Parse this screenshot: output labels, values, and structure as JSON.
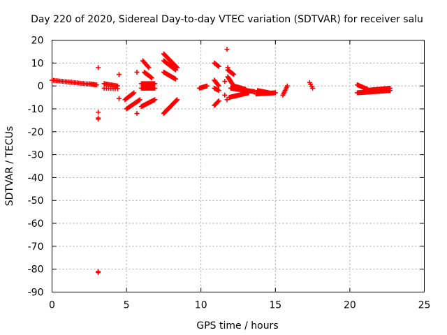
{
  "chart_data": {
    "type": "scatter",
    "title": "Day 220 of 2020, Sidereal Day-to-day VTEC variation (SDTVAR) for receiver salu",
    "xlabel": "GPS time / hours",
    "ylabel": "SDTVAR / TECUs",
    "xlim": [
      0,
      25
    ],
    "ylim": [
      -90,
      20
    ],
    "xticks": [
      "0",
      "5",
      "10",
      "15",
      "20",
      "25"
    ],
    "yticks": [
      "20",
      "10",
      "0",
      "-10",
      "-20",
      "-30",
      "-40",
      "-50",
      "-60",
      "-70",
      "-80",
      "-90"
    ],
    "grid": true,
    "marker": "+",
    "color": "#ff0000",
    "segments": [
      {
        "x": [
          0.0,
          2.9
        ],
        "y": [
          2.5,
          0.5
        ],
        "step": 0.1
      },
      {
        "x": [
          2.5,
          3.0
        ],
        "y": [
          1.0,
          0.5
        ],
        "step": 0.12
      },
      {
        "x": [
          3.5,
          4.4
        ],
        "y": [
          1.0,
          0.0
        ],
        "step": 0.08
      },
      {
        "x": [
          3.5,
          4.4
        ],
        "y": [
          -1.0,
          -1.2
        ],
        "step": 0.15
      },
      {
        "x": [
          4.9,
          5.5
        ],
        "y": [
          -6.0,
          -3.0
        ],
        "step": 0.06
      },
      {
        "x": [
          5.0,
          5.9
        ],
        "y": [
          -10.0,
          -6.0
        ],
        "step": 0.06
      },
      {
        "x": [
          6.1,
          6.5
        ],
        "y": [
          11.0,
          8.0
        ],
        "step": 0.06
      },
      {
        "x": [
          6.2,
          6.7
        ],
        "y": [
          6.0,
          3.5
        ],
        "step": 0.05
      },
      {
        "x": [
          6.0,
          6.9
        ],
        "y": [
          1.0,
          1.0
        ],
        "step": 0.06
      },
      {
        "x": [
          6.0,
          6.9
        ],
        "y": [
          -1.0,
          -1.0
        ],
        "step": 0.06
      },
      {
        "x": [
          6.0,
          6.9
        ],
        "y": [
          -9.0,
          -6.0
        ],
        "step": 0.05
      },
      {
        "x": [
          7.5,
          8.4
        ],
        "y": [
          14.0,
          8.0
        ],
        "step": 0.04
      },
      {
        "x": [
          7.5,
          8.3
        ],
        "y": [
          11.0,
          7.0
        ],
        "step": 0.05
      },
      {
        "x": [
          7.5,
          8.3
        ],
        "y": [
          6.0,
          3.0
        ],
        "step": 0.05
      },
      {
        "x": [
          7.5,
          8.4
        ],
        "y": [
          -12.0,
          -6.0
        ],
        "step": 0.04
      },
      {
        "x": [
          9.9,
          10.4
        ],
        "y": [
          -1.0,
          0.0
        ],
        "step": 0.06
      },
      {
        "x": [
          10.9,
          11.2
        ],
        "y": [
          10.0,
          8.5
        ],
        "step": 0.05
      },
      {
        "x": [
          10.9,
          11.2
        ],
        "y": [
          2.5,
          0.0
        ],
        "step": 0.05
      },
      {
        "x": [
          10.9,
          11.2
        ],
        "y": [
          -1.0,
          -2.0
        ],
        "step": 0.06
      },
      {
        "x": [
          10.9,
          11.2
        ],
        "y": [
          -8.5,
          -6.5
        ],
        "step": 0.06
      },
      {
        "x": [
          11.8,
          12.2
        ],
        "y": [
          7.0,
          5.0
        ],
        "step": 0.05
      },
      {
        "x": [
          11.8,
          12.2
        ],
        "y": [
          4.0,
          0.0
        ],
        "step": 0.04
      },
      {
        "x": [
          11.9,
          13.2
        ],
        "y": [
          -5.0,
          -3.0
        ],
        "step": 0.05
      },
      {
        "x": [
          12.0,
          13.6
        ],
        "y": [
          -1.0,
          -2.5
        ],
        "step": 0.05
      },
      {
        "x": [
          12.2,
          13.0
        ],
        "y": [
          0.0,
          -1.5
        ],
        "step": 0.05
      },
      {
        "x": [
          13.7,
          15.0
        ],
        "y": [
          -3.5,
          -3.0
        ],
        "step": 0.05
      },
      {
        "x": [
          13.8,
          14.6
        ],
        "y": [
          -2.0,
          -3.0
        ],
        "step": 0.06
      },
      {
        "x": [
          15.5,
          15.8
        ],
        "y": [
          -4.0,
          0.0
        ],
        "step": 0.05
      },
      {
        "x": [
          17.3,
          17.5
        ],
        "y": [
          1.5,
          -1.0
        ],
        "step": 0.06
      },
      {
        "x": [
          20.5,
          22.7
        ],
        "y": [
          -3.0,
          -2.0
        ],
        "step": 0.04
      },
      {
        "x": [
          20.5,
          21.2
        ],
        "y": [
          0.5,
          -1.5
        ],
        "step": 0.06
      },
      {
        "x": [
          21.0,
          22.7
        ],
        "y": [
          -2.0,
          -1.0
        ],
        "step": 0.06
      }
    ],
    "isolated_points": [
      {
        "x": 3.1,
        "y": 8.0
      },
      {
        "x": 3.1,
        "y": -11.5
      },
      {
        "x": 3.1,
        "y": -14.0
      },
      {
        "x": 3.1,
        "y": -14.5
      },
      {
        "x": 3.1,
        "y": -81.0
      },
      {
        "x": 3.1,
        "y": -81.5
      },
      {
        "x": 4.5,
        "y": 5.0
      },
      {
        "x": 4.5,
        "y": -5.5
      },
      {
        "x": 5.7,
        "y": 6.0
      },
      {
        "x": 5.7,
        "y": -12.0
      },
      {
        "x": 11.75,
        "y": 16.0
      },
      {
        "x": 11.6,
        "y": 2.0
      },
      {
        "x": 11.6,
        "y": -4.0
      },
      {
        "x": 11.75,
        "y": -6.0
      },
      {
        "x": 11.8,
        "y": 8.0
      }
    ]
  }
}
